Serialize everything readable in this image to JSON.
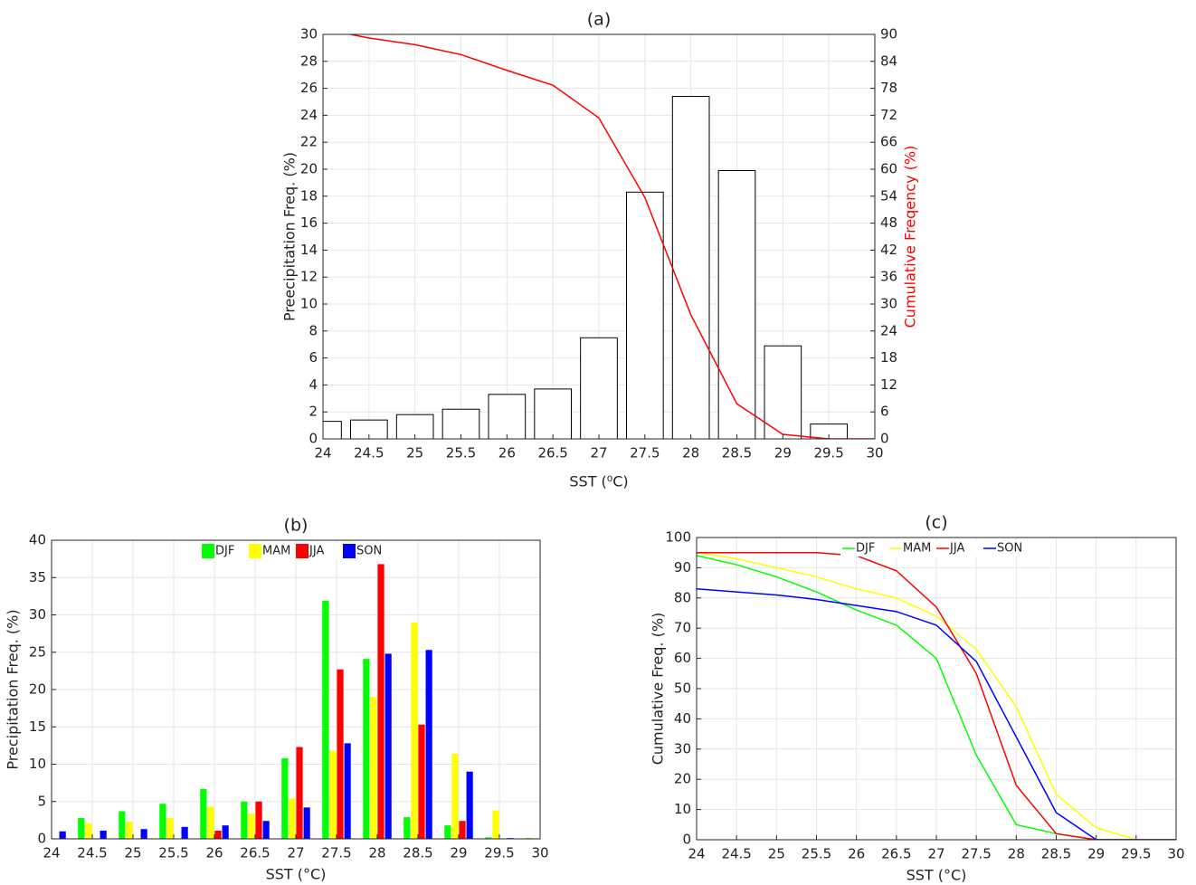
{
  "chart_data": [
    {
      "type": "bar",
      "title": "(a)",
      "x_label": "SST (⁰C)",
      "y_label": "Preecipitation Freq. (%)",
      "y2_label": "Cumulative Freqency (%)",
      "x": [
        24,
        24.5,
        25,
        25.5,
        26,
        26.5,
        27,
        27.5,
        28,
        28.5,
        29,
        29.5
      ],
      "values": [
        1.3,
        1.4,
        1.8,
        2.2,
        3.3,
        3.7,
        7.5,
        18.3,
        25.4,
        19.9,
        6.9,
        1.1
      ],
      "color": "#ffffff",
      "edge_color": "#000000",
      "line": {
        "x": [
          24.3,
          24.5,
          25,
          25.5,
          26,
          26.5,
          27,
          27.5,
          28,
          28.5,
          29,
          29.5,
          30
        ],
        "values": [
          90,
          89.2,
          87.7,
          85.5,
          82,
          78.7,
          71.4,
          53.7,
          27.6,
          7.8,
          1,
          0,
          0
        ],
        "color": "#ff0000",
        "axis": "y2"
      },
      "xlim": [
        24,
        30
      ],
      "ylim": [
        0,
        30
      ],
      "y2lim": [
        0,
        90
      ],
      "xticks": [
        24,
        24.5,
        25,
        25.5,
        26,
        26.5,
        27,
        27.5,
        28,
        28.5,
        29,
        29.5,
        30
      ],
      "yticks": [
        0,
        2,
        4,
        6,
        8,
        10,
        12,
        14,
        16,
        18,
        20,
        22,
        24,
        26,
        28,
        30
      ],
      "y2ticks": [
        0,
        6,
        12,
        18,
        24,
        30,
        36,
        42,
        48,
        54,
        60,
        66,
        72,
        78,
        84,
        90
      ],
      "grid": true
    },
    {
      "type": "bar",
      "title": "(b)",
      "x_label": "SST (°C)",
      "y_label": "Precipitation Freq. (%)",
      "x": [
        24,
        24.5,
        25,
        25.5,
        26,
        26.5,
        27,
        27.5,
        28,
        28.5,
        29,
        29.5,
        30
      ],
      "series": [
        {
          "name": "DJF",
          "color": "#00ff00",
          "values": [
            0,
            2.8,
            3.7,
            4.7,
            6.7,
            5,
            10.8,
            31.9,
            24.1,
            2.9,
            1.8,
            0.2,
            0.1
          ]
        },
        {
          "name": "MAM",
          "color": "#ffff00",
          "values": [
            0,
            2.1,
            2.3,
            2.8,
            4.3,
            3.4,
            5.4,
            11.8,
            19,
            29,
            11.4,
            3.8,
            0.1
          ]
        },
        {
          "name": "JJA",
          "color": "#ff0000",
          "values": [
            0,
            0,
            0,
            0,
            1.1,
            5,
            12.3,
            22.7,
            36.8,
            15.3,
            2.4,
            0,
            0
          ]
        },
        {
          "name": "SON",
          "color": "#0000ff",
          "values": [
            1,
            1.1,
            1.3,
            1.6,
            1.8,
            2.4,
            4.2,
            12.8,
            24.8,
            25.3,
            9,
            0.1,
            0
          ]
        }
      ],
      "xlim": [
        24,
        30
      ],
      "ylim": [
        0,
        40
      ],
      "xticks": [
        24,
        24.5,
        25,
        25.5,
        26,
        26.5,
        27,
        27.5,
        28,
        28.5,
        29,
        29.5,
        30
      ],
      "yticks": [
        0,
        5,
        10,
        15,
        20,
        25,
        30,
        35,
        40
      ],
      "grid": true,
      "legend": "upper-center"
    },
    {
      "type": "line",
      "title": "(c)",
      "x_label": "SST (°C)",
      "y_label": "Cumulative Freq. (%)",
      "x": [
        24,
        24.5,
        25,
        25.5,
        26,
        26.5,
        27,
        27.5,
        28,
        28.5,
        29,
        29.5,
        30
      ],
      "series": [
        {
          "name": "DJF",
          "color": "#00ff00",
          "values": [
            94,
            91,
            87,
            82,
            76,
            71,
            60,
            28,
            5,
            2,
            0,
            0,
            0
          ]
        },
        {
          "name": "MAM",
          "color": "#ffff00",
          "values": [
            95,
            93,
            90,
            87,
            83,
            80,
            74,
            63,
            44,
            15,
            4,
            0,
            0
          ]
        },
        {
          "name": "JJA",
          "color": "#ff0000",
          "values": [
            95,
            95,
            95,
            95,
            94,
            89,
            77,
            55,
            18,
            2,
            0,
            0,
            0
          ]
        },
        {
          "name": "SON",
          "color": "#0000ff",
          "values": [
            83,
            82,
            81,
            79.5,
            77.5,
            75.5,
            71,
            59,
            34,
            9,
            0,
            0,
            0
          ]
        }
      ],
      "xlim": [
        24,
        30
      ],
      "ylim": [
        0,
        100
      ],
      "xticks": [
        24,
        24.5,
        25,
        25.5,
        26,
        26.5,
        27,
        27.5,
        28,
        28.5,
        29,
        29.5,
        30
      ],
      "yticks": [
        0,
        10,
        20,
        30,
        40,
        50,
        60,
        70,
        80,
        90,
        100
      ],
      "grid": true,
      "legend": "upper-center"
    }
  ]
}
